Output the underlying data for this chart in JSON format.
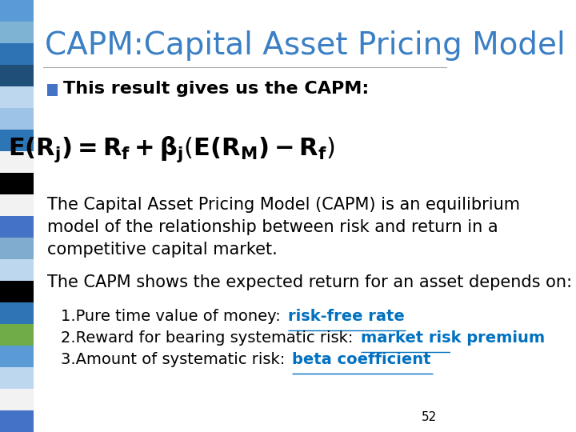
{
  "title": "CAPM:Capital Asset Pricing Model",
  "title_color": "#3B7FC4",
  "title_fontsize": 28,
  "bg_color": "#FFFFFF",
  "sidebar_colors": [
    "#5B9BD5",
    "#7FB3D3",
    "#2E74B5",
    "#1F4E79",
    "#BDD7EE",
    "#9DC3E6",
    "#2E75B6",
    "#F2F2F2",
    "#000000",
    "#F2F2F2",
    "#4472C4",
    "#7FACCF",
    "#BDD7EE",
    "#000000",
    "#2E75B6",
    "#70AD47",
    "#5B9BD5",
    "#BDD7EE",
    "#F2F2F2",
    "#4472C4"
  ],
  "bullet_color": "#4472C4",
  "bullet_text": "This result gives us the CAPM:",
  "bullet_fontsize": 16,
  "formula_fontsize": 22,
  "body_text1": "The Capital Asset Pricing Model (CAPM) is an equilibrium\nmodel of the relationship between risk and return in a\ncompetitive capital market.",
  "body_text2": "The CAPM shows the expected return for an asset depends on:",
  "body_fontsize": 15,
  "item1_plain": "1.Pure time value of money: ",
  "item1_link": "risk-free rate",
  "item2_plain": "2.Reward for bearing systematic risk: ",
  "item2_link": "market risk premium",
  "item3_plain": "3.Amount of systematic risk: ",
  "item3_link": "beta coefficient",
  "link_color": "#0070C0",
  "item_fontsize": 14,
  "page_num": "52",
  "page_num_fontsize": 11,
  "text_color": "#000000"
}
